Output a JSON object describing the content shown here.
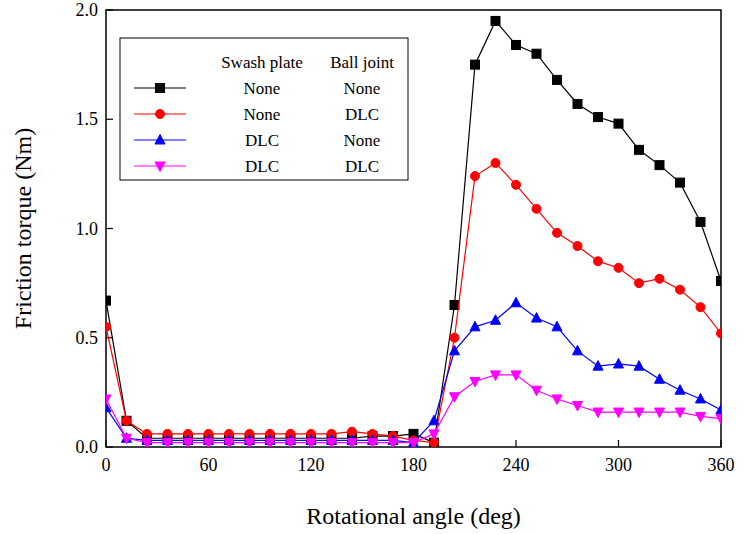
{
  "chart_data": {
    "type": "line",
    "x_label": "Rotational angle (deg)",
    "y_label": "Friction torque (Nm)",
    "x": [
      0,
      12,
      24,
      36,
      48,
      60,
      72,
      84,
      96,
      108,
      120,
      132,
      144,
      156,
      168,
      180,
      192,
      204,
      216,
      228,
      240,
      252,
      264,
      276,
      288,
      300,
      312,
      324,
      336,
      348,
      360
    ],
    "xlim": [
      0,
      360
    ],
    "xticks": [
      0,
      60,
      120,
      180,
      240,
      300,
      360
    ],
    "ylim": [
      0,
      2
    ],
    "yticks": [
      {
        "value": 0,
        "label": "0.0"
      },
      0.5,
      {
        "value": 1,
        "label": "1.0"
      },
      1.5,
      {
        "value": 2,
        "label": "2.0"
      }
    ],
    "legend": "upper left",
    "legend_columns": [
      "Swash plate",
      "Ball joint"
    ],
    "series": [
      {
        "name": [
          "None",
          "None"
        ],
        "color": "#000000",
        "marker": "square",
        "values": [
          0.67,
          0.12,
          0.04,
          0.04,
          0.04,
          0.04,
          0.04,
          0.04,
          0.04,
          0.04,
          0.04,
          0.04,
          0.04,
          0.05,
          0.05,
          0.06,
          0.02,
          0.65,
          1.75,
          1.95,
          1.84,
          1.8,
          1.68,
          1.57,
          1.51,
          1.48,
          1.36,
          1.29,
          1.21,
          1.03,
          0.76
        ]
      },
      {
        "name": [
          "None",
          "DLC"
        ],
        "color": "#ff0000",
        "marker": "circle",
        "values": [
          0.55,
          0.12,
          0.06,
          0.06,
          0.06,
          0.06,
          0.06,
          0.06,
          0.06,
          0.06,
          0.06,
          0.06,
          0.07,
          0.06,
          0.05,
          0.03,
          0.02,
          0.5,
          1.24,
          1.3,
          1.2,
          1.09,
          0.98,
          0.92,
          0.85,
          0.82,
          0.75,
          0.77,
          0.72,
          0.64,
          0.52
        ]
      },
      {
        "name": [
          "DLC",
          "None"
        ],
        "color": "#0000ff",
        "marker": "triangle-up",
        "values": [
          0.18,
          0.04,
          0.03,
          0.03,
          0.03,
          0.03,
          0.03,
          0.03,
          0.03,
          0.03,
          0.03,
          0.03,
          0.03,
          0.03,
          0.03,
          0.02,
          0.12,
          0.44,
          0.55,
          0.58,
          0.66,
          0.59,
          0.55,
          0.44,
          0.37,
          0.38,
          0.37,
          0.31,
          0.26,
          0.22,
          0.17
        ]
      },
      {
        "name": [
          "DLC",
          "DLC"
        ],
        "color": "#ff00ff",
        "marker": "triangle-down",
        "values": [
          0.22,
          0.04,
          0.02,
          0.02,
          0.02,
          0.02,
          0.02,
          0.02,
          0.02,
          0.02,
          0.02,
          0.02,
          0.02,
          0.02,
          0.02,
          0.02,
          0.06,
          0.23,
          0.3,
          0.33,
          0.33,
          0.26,
          0.22,
          0.19,
          0.16,
          0.16,
          0.16,
          0.16,
          0.16,
          0.14,
          0.13
        ]
      }
    ]
  }
}
